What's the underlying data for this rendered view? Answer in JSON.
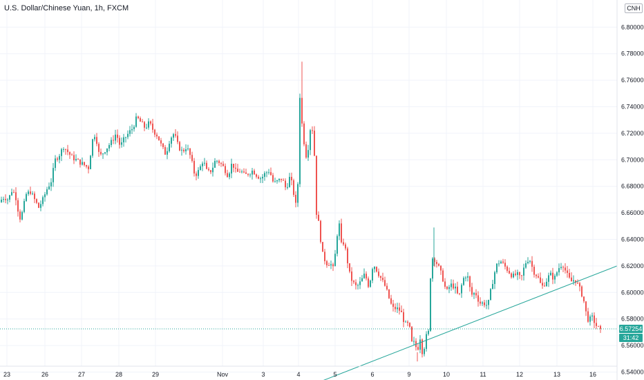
{
  "header": {
    "title": "U.S. Dollar/Chinese Yuan, 1h, FXCM",
    "symbol_badge": "CNH"
  },
  "price_tag": {
    "price": "6.57254",
    "countdown": "31:42",
    "color": "#26a69a"
  },
  "colors": {
    "up": "#26a69a",
    "down": "#ef5350",
    "trendline": "#26a69a",
    "grid": "#f0f3fa",
    "axis_text": "#131722"
  },
  "chart_data": {
    "type": "candlestick",
    "ylim": [
      6.53,
      6.8
    ],
    "y_ticks": [
      "6.54000",
      "6.56000",
      "6.58000",
      "6.60000",
      "6.62000",
      "6.64000",
      "6.66000",
      "6.68000",
      "6.70000",
      "6.72000",
      "6.74000",
      "6.76000",
      "6.78000",
      "6.80000"
    ],
    "x_ticks": [
      "23",
      "26",
      "27",
      "28",
      "29",
      "Nov",
      "3",
      "4",
      "5",
      "6",
      "9",
      "10",
      "11",
      "12",
      "13",
      "16"
    ],
    "last_price": 6.57254,
    "trendline": {
      "from": {
        "day": "3",
        "price": 6.525
      },
      "to": {
        "day": "16",
        "price": 6.62
      }
    },
    "daily_ohlc": [
      {
        "day": "23",
        "open": 6.67,
        "high": 6.684,
        "low": 6.652,
        "close": 6.665
      },
      {
        "day": "26",
        "open": 6.665,
        "high": 6.686,
        "low": 6.655,
        "close": 6.682
      },
      {
        "day": "27",
        "open": 6.682,
        "high": 6.716,
        "low": 6.687,
        "close": 6.698
      },
      {
        "day": "28",
        "open": 6.698,
        "high": 6.725,
        "low": 6.688,
        "close": 6.72
      },
      {
        "day": "29",
        "open": 6.72,
        "high": 6.738,
        "low": 6.705,
        "close": 6.712
      },
      {
        "day": "30",
        "open": 6.712,
        "high": 6.722,
        "low": 6.676,
        "close": 6.69
      },
      {
        "day": "Nov",
        "open": 6.69,
        "high": 6.7,
        "low": 6.684,
        "close": 6.692
      },
      {
        "day": "3",
        "open": 6.692,
        "high": 6.696,
        "low": 6.677,
        "close": 6.685
      },
      {
        "day": "4",
        "open": 6.685,
        "high": 6.774,
        "low": 6.65,
        "close": 6.67
      },
      {
        "day": "5",
        "open": 6.67,
        "high": 6.662,
        "low": 6.615,
        "close": 6.62
      },
      {
        "day": "6",
        "open": 6.62,
        "high": 6.628,
        "low": 6.585,
        "close": 6.592
      },
      {
        "day": "9",
        "open": 6.592,
        "high": 6.602,
        "low": 6.547,
        "close": 6.56
      },
      {
        "day": "10",
        "open": 6.56,
        "high": 6.649,
        "low": 6.548,
        "close": 6.6
      },
      {
        "day": "11",
        "open": 6.6,
        "high": 6.626,
        "low": 6.583,
        "close": 6.612
      },
      {
        "day": "12",
        "open": 6.612,
        "high": 6.634,
        "low": 6.6,
        "close": 6.62
      },
      {
        "day": "13",
        "open": 6.62,
        "high": 6.627,
        "low": 6.6,
        "close": 6.61
      },
      {
        "day": "16",
        "open": 6.61,
        "high": 6.612,
        "low": 6.571,
        "close": 6.57254
      }
    ],
    "path": [
      [
        0,
        6.668
      ],
      [
        8,
        6.672
      ],
      [
        14,
        6.67
      ],
      [
        20,
        6.678
      ],
      [
        26,
        6.67
      ],
      [
        30,
        6.655
      ],
      [
        34,
        6.66
      ],
      [
        40,
        6.674
      ],
      [
        46,
        6.676
      ],
      [
        52,
        6.67
      ],
      [
        58,
        6.664
      ],
      [
        64,
        6.67
      ],
      [
        70,
        6.678
      ],
      [
        76,
        6.684
      ],
      [
        82,
        6.7
      ],
      [
        88,
        6.704
      ],
      [
        94,
        6.71
      ],
      [
        100,
        6.706
      ],
      [
        106,
        6.702
      ],
      [
        112,
        6.7
      ],
      [
        118,
        6.698
      ],
      [
        124,
        6.696
      ],
      [
        130,
        6.694
      ],
      [
        136,
        6.715
      ],
      [
        140,
        6.72
      ],
      [
        146,
        6.702
      ],
      [
        152,
        6.706
      ],
      [
        158,
        6.71
      ],
      [
        164,
        6.714
      ],
      [
        170,
        6.72
      ],
      [
        176,
        6.71
      ],
      [
        182,
        6.716
      ],
      [
        188,
        6.72
      ],
      [
        194,
        6.724
      ],
      [
        200,
        6.732
      ],
      [
        206,
        6.728
      ],
      [
        212,
        6.724
      ],
      [
        218,
        6.728
      ],
      [
        224,
        6.722
      ],
      [
        230,
        6.718
      ],
      [
        236,
        6.71
      ],
      [
        242,
        6.704
      ],
      [
        248,
        6.716
      ],
      [
        254,
        6.72
      ],
      [
        260,
        6.71
      ],
      [
        266,
        6.706
      ],
      [
        272,
        6.71
      ],
      [
        278,
        6.702
      ],
      [
        284,
        6.688
      ],
      [
        290,
        6.692
      ],
      [
        296,
        6.7
      ],
      [
        302,
        6.69
      ],
      [
        308,
        6.692
      ],
      [
        314,
        6.7
      ],
      [
        320,
        6.698
      ],
      [
        326,
        6.694
      ],
      [
        332,
        6.688
      ],
      [
        338,
        6.698
      ],
      [
        344,
        6.69
      ],
      [
        350,
        6.692
      ],
      [
        356,
        6.688
      ],
      [
        362,
        6.69
      ],
      [
        368,
        6.692
      ],
      [
        374,
        6.688
      ],
      [
        380,
        6.686
      ],
      [
        386,
        6.69
      ],
      [
        392,
        6.692
      ],
      [
        398,
        6.682
      ],
      [
        404,
        6.684
      ],
      [
        410,
        6.686
      ],
      [
        416,
        6.678
      ],
      [
        422,
        6.688
      ],
      [
        428,
        6.672
      ],
      [
        432,
        6.66
      ],
      [
        436,
        6.748
      ],
      [
        440,
        6.72
      ],
      [
        446,
        6.7
      ],
      [
        452,
        6.728
      ],
      [
        456,
        6.718
      ],
      [
        460,
        6.66
      ],
      [
        464,
        6.65
      ],
      [
        468,
        6.63
      ],
      [
        474,
        6.622
      ],
      [
        480,
        6.622
      ],
      [
        484,
        6.618
      ],
      [
        488,
        6.632
      ],
      [
        492,
        6.656
      ],
      [
        496,
        6.636
      ],
      [
        500,
        6.638
      ],
      [
        504,
        6.626
      ],
      [
        508,
        6.614
      ],
      [
        512,
        6.608
      ],
      [
        518,
        6.604
      ],
      [
        524,
        6.608
      ],
      [
        530,
        6.614
      ],
      [
        536,
        6.604
      ],
      [
        542,
        6.622
      ],
      [
        548,
        6.616
      ],
      [
        554,
        6.61
      ],
      [
        560,
        6.604
      ],
      [
        566,
        6.594
      ],
      [
        570,
        6.588
      ],
      [
        576,
        6.588
      ],
      [
        582,
        6.586
      ],
      [
        588,
        6.576
      ],
      [
        594,
        6.576
      ],
      [
        598,
        6.562
      ],
      [
        602,
        6.562
      ],
      [
        606,
        6.556
      ],
      [
        610,
        6.566
      ],
      [
        614,
        6.552
      ],
      [
        618,
        6.566
      ],
      [
        622,
        6.57
      ],
      [
        626,
        6.626
      ],
      [
        630,
        6.626
      ],
      [
        636,
        6.62
      ],
      [
        642,
        6.612
      ],
      [
        648,
        6.6
      ],
      [
        654,
        6.606
      ],
      [
        660,
        6.604
      ],
      [
        666,
        6.596
      ],
      [
        672,
        6.61
      ],
      [
        678,
        6.614
      ],
      [
        684,
        6.598
      ],
      [
        690,
        6.6
      ],
      [
        696,
        6.592
      ],
      [
        702,
        6.592
      ],
      [
        708,
        6.59
      ],
      [
        714,
        6.606
      ],
      [
        720,
        6.62
      ],
      [
        726,
        6.624
      ],
      [
        732,
        6.62
      ],
      [
        738,
        6.616
      ],
      [
        744,
        6.612
      ],
      [
        750,
        6.614
      ],
      [
        756,
        6.61
      ],
      [
        762,
        6.622
      ],
      [
        768,
        6.626
      ],
      [
        774,
        6.616
      ],
      [
        780,
        6.612
      ],
      [
        786,
        6.604
      ],
      [
        792,
        6.608
      ],
      [
        798,
        6.614
      ],
      [
        804,
        6.61
      ],
      [
        810,
        6.618
      ],
      [
        816,
        6.622
      ],
      [
        822,
        6.614
      ],
      [
        828,
        6.608
      ],
      [
        834,
        6.61
      ],
      [
        840,
        6.604
      ],
      [
        846,
        6.596
      ],
      [
        850,
        6.585
      ],
      [
        854,
        6.578
      ],
      [
        858,
        6.582
      ],
      [
        862,
        6.578
      ],
      [
        866,
        6.574
      ],
      [
        870,
        6.57254
      ]
    ]
  }
}
